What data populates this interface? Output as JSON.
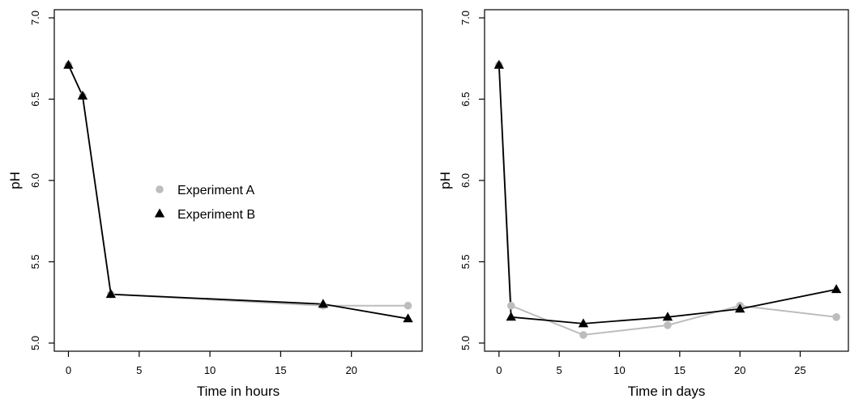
{
  "chart_data": [
    {
      "type": "line",
      "xlabel": "Time in hours",
      "ylabel": "pH",
      "xlim": [
        -1,
        25
      ],
      "ylim": [
        4.95,
        7.05
      ],
      "xticks": [
        0,
        5,
        10,
        15,
        20
      ],
      "yticks": [
        5.0,
        5.5,
        6.0,
        6.5,
        7.0
      ],
      "ytick_labels": [
        "5.0",
        "5.5",
        "6.0",
        "6.5",
        "7.0"
      ],
      "legend": "center-left",
      "grid": false,
      "series": [
        {
          "name": "Experiment A",
          "marker": "circle",
          "color": "#bdbdbd",
          "x": [
            0,
            1,
            3,
            18,
            24
          ],
          "y": [
            6.71,
            6.52,
            5.3,
            5.23,
            5.23
          ]
        },
        {
          "name": "Experiment B",
          "marker": "triangle",
          "color": "#000000",
          "x": [
            0,
            1,
            3,
            18,
            24
          ],
          "y": [
            6.71,
            6.52,
            5.3,
            5.24,
            5.15
          ]
        }
      ]
    },
    {
      "type": "line",
      "xlabel": "Time in days",
      "ylabel": "pH",
      "xlim": [
        -1.2,
        29
      ],
      "ylim": [
        4.95,
        7.05
      ],
      "xticks": [
        0,
        5,
        10,
        15,
        20,
        25
      ],
      "yticks": [
        5.0,
        5.5,
        6.0,
        6.5,
        7.0
      ],
      "ytick_labels": [
        "5.0",
        "5.5",
        "6.0",
        "6.5",
        "7.0"
      ],
      "grid": false,
      "series": [
        {
          "name": "Experiment A",
          "marker": "circle",
          "color": "#bdbdbd",
          "x": [
            0,
            1,
            7,
            14,
            20,
            28
          ],
          "y": [
            6.71,
            5.23,
            5.05,
            5.11,
            5.23,
            5.16
          ]
        },
        {
          "name": "Experiment B",
          "marker": "triangle",
          "color": "#000000",
          "x": [
            0,
            1,
            7,
            14,
            20,
            28
          ],
          "y": [
            6.71,
            5.16,
            5.12,
            5.16,
            5.21,
            5.33
          ]
        }
      ]
    }
  ]
}
